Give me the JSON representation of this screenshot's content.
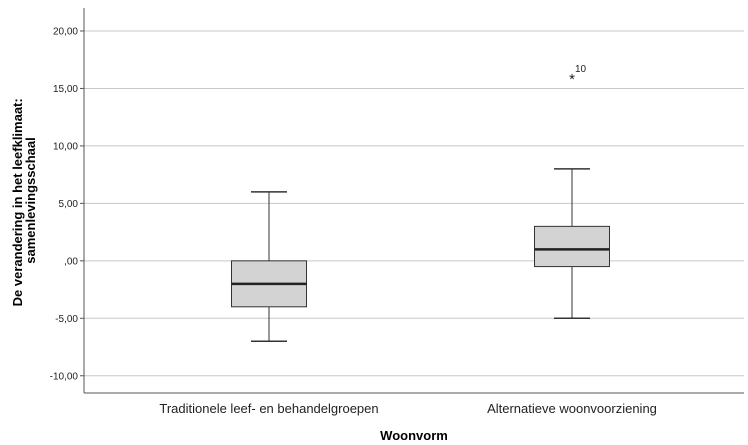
{
  "chart_data": {
    "type": "box",
    "xlabel": "Woonvorm",
    "ylabel_lines": [
      "De verandering in het leefklimaat:",
      "samenlevingsschaal"
    ],
    "ylim": [
      -11.5,
      22
    ],
    "yticks": [
      -10,
      -5,
      0,
      5,
      10,
      15,
      20
    ],
    "ytick_labels": [
      "-10,00",
      "-5,00",
      ",00",
      "5,00",
      "10,00",
      "15,00",
      "20,00"
    ],
    "grid": "horizontal",
    "box_color": "#d3d3d3",
    "categories": [
      "Traditionele leef- en behandelgroepen",
      "Alternatieve woonvoorziening"
    ],
    "boxes": [
      {
        "whisker_low": -7,
        "q1": -4,
        "median": -2,
        "q3": 0,
        "whisker_high": 6,
        "outliers": []
      },
      {
        "whisker_low": -5,
        "q1": -0.5,
        "median": 1,
        "q3": 3,
        "whisker_high": 8,
        "outliers": [
          {
            "value": 16,
            "marker": "*",
            "label": "10"
          }
        ]
      }
    ]
  }
}
